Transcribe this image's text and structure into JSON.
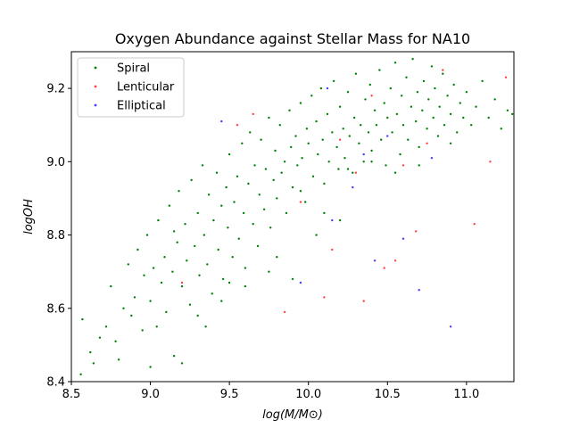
{
  "chart_data": {
    "type": "scatter",
    "title": "Oxygen Abundance against Stellar Mass for NA10",
    "xlabel": "log(M/M⊙)",
    "ylabel": "logOH",
    "xlim": [
      8.5,
      11.3
    ],
    "ylim": [
      8.4,
      9.3
    ],
    "x_ticks": [
      "8.5",
      "9.0",
      "9.5",
      "10.0",
      "10.5",
      "11.0"
    ],
    "x_tick_values": [
      8.5,
      9.0,
      9.5,
      10.0,
      10.5,
      11.0
    ],
    "y_ticks": [
      "8.4",
      "8.6",
      "8.8",
      "9.0",
      "9.2"
    ],
    "y_tick_values": [
      8.4,
      8.6,
      8.8,
      9.0,
      9.2
    ],
    "grid": false,
    "legend_position": "top-left",
    "series": [
      {
        "name": "Spiral",
        "color": "#008000",
        "points": [
          [
            8.56,
            8.42
          ],
          [
            8.57,
            8.57
          ],
          [
            8.62,
            8.48
          ],
          [
            8.64,
            8.45
          ],
          [
            8.68,
            8.52
          ],
          [
            8.72,
            8.55
          ],
          [
            8.75,
            8.66
          ],
          [
            8.78,
            8.51
          ],
          [
            8.8,
            8.46
          ],
          [
            8.83,
            8.6
          ],
          [
            8.86,
            8.72
          ],
          [
            8.88,
            8.58
          ],
          [
            8.9,
            8.63
          ],
          [
            8.92,
            8.76
          ],
          [
            8.95,
            8.54
          ],
          [
            8.96,
            8.69
          ],
          [
            8.98,
            8.8
          ],
          [
            9.0,
            8.62
          ],
          [
            9.02,
            8.71
          ],
          [
            9.04,
            8.55
          ],
          [
            9.05,
            8.84
          ],
          [
            9.07,
            8.67
          ],
          [
            9.09,
            8.74
          ],
          [
            9.1,
            8.59
          ],
          [
            9.12,
            8.88
          ],
          [
            9.14,
            8.7
          ],
          [
            9.15,
            8.47
          ],
          [
            9.17,
            8.78
          ],
          [
            9.18,
            8.92
          ],
          [
            9.2,
            8.66
          ],
          [
            9.22,
            8.83
          ],
          [
            9.23,
            8.73
          ],
          [
            9.25,
            8.61
          ],
          [
            9.26,
            8.95
          ],
          [
            9.28,
            8.77
          ],
          [
            9.3,
            8.86
          ],
          [
            9.31,
            8.69
          ],
          [
            9.33,
            8.99
          ],
          [
            9.34,
            8.8
          ],
          [
            9.36,
            8.72
          ],
          [
            9.37,
            8.91
          ],
          [
            9.39,
            8.64
          ],
          [
            9.4,
            8.84
          ],
          [
            9.42,
            8.97
          ],
          [
            9.43,
            8.76
          ],
          [
            9.45,
            8.88
          ],
          [
            9.46,
            8.68
          ],
          [
            9.48,
            8.93
          ],
          [
            9.49,
            8.82
          ],
          [
            9.5,
            9.02
          ],
          [
            9.52,
            8.74
          ],
          [
            9.53,
            8.89
          ],
          [
            9.55,
            8.96
          ],
          [
            9.56,
            8.79
          ],
          [
            9.58,
            9.05
          ],
          [
            9.59,
            8.86
          ],
          [
            9.6,
            8.71
          ],
          [
            9.62,
            8.94
          ],
          [
            9.63,
            9.08
          ],
          [
            9.65,
            8.83
          ],
          [
            9.66,
            8.99
          ],
          [
            9.68,
            8.77
          ],
          [
            9.69,
            8.91
          ],
          [
            9.7,
            9.06
          ],
          [
            9.72,
            8.87
          ],
          [
            9.73,
            8.98
          ],
          [
            9.75,
            9.12
          ],
          [
            9.76,
            8.82
          ],
          [
            9.78,
            8.95
          ],
          [
            9.79,
            9.03
          ],
          [
            9.8,
            8.9
          ],
          [
            9.82,
            9.1
          ],
          [
            9.83,
            8.97
          ],
          [
            9.85,
            9.0
          ],
          [
            9.86,
            8.86
          ],
          [
            9.88,
            9.14
          ],
          [
            9.89,
            9.04
          ],
          [
            9.9,
            8.93
          ],
          [
            9.92,
            9.07
          ],
          [
            9.93,
            8.99
          ],
          [
            9.95,
            9.16
          ],
          [
            9.96,
            9.01
          ],
          [
            9.98,
            8.89
          ],
          [
            9.99,
            9.09
          ],
          [
            10.0,
            9.05
          ],
          [
            10.02,
            9.18
          ],
          [
            10.03,
            8.96
          ],
          [
            10.05,
            9.11
          ],
          [
            10.06,
            9.02
          ],
          [
            10.08,
            9.2
          ],
          [
            10.09,
            9.06
          ],
          [
            10.1,
            8.94
          ],
          [
            10.12,
            9.13
          ],
          [
            10.13,
            9.0
          ],
          [
            10.15,
            9.08
          ],
          [
            10.16,
            9.22
          ],
          [
            10.18,
            9.04
          ],
          [
            10.19,
            8.98
          ],
          [
            10.2,
            9.15
          ],
          [
            10.22,
            9.09
          ],
          [
            10.23,
            9.01
          ],
          [
            10.25,
            9.19
          ],
          [
            10.26,
            9.07
          ],
          [
            10.28,
            8.97
          ],
          [
            10.29,
            9.12
          ],
          [
            10.3,
            9.24
          ],
          [
            10.32,
            9.05
          ],
          [
            10.33,
            9.1
          ],
          [
            10.35,
            9.0
          ],
          [
            10.36,
            9.17
          ],
          [
            10.38,
            9.08
          ],
          [
            10.39,
            9.21
          ],
          [
            10.4,
            9.03
          ],
          [
            10.42,
            9.14
          ],
          [
            10.43,
            9.1
          ],
          [
            10.45,
            9.25
          ],
          [
            10.46,
            9.06
          ],
          [
            10.48,
            9.16
          ],
          [
            10.49,
            8.99
          ],
          [
            10.5,
            9.12
          ],
          [
            10.52,
            9.2
          ],
          [
            10.53,
            9.08
          ],
          [
            10.55,
            9.27
          ],
          [
            10.56,
            9.13
          ],
          [
            10.58,
            9.02
          ],
          [
            10.59,
            9.18
          ],
          [
            10.6,
            9.1
          ],
          [
            10.62,
            9.23
          ],
          [
            10.63,
            9.06
          ],
          [
            10.65,
            9.15
          ],
          [
            10.66,
            9.28
          ],
          [
            10.68,
            9.11
          ],
          [
            10.69,
            9.19
          ],
          [
            10.7,
            9.04
          ],
          [
            10.72,
            9.14
          ],
          [
            10.73,
            9.22
          ],
          [
            10.75,
            9.09
          ],
          [
            10.76,
            9.17
          ],
          [
            10.78,
            9.26
          ],
          [
            10.79,
            9.12
          ],
          [
            10.8,
            9.2
          ],
          [
            10.82,
            9.07
          ],
          [
            10.83,
            9.15
          ],
          [
            10.85,
            9.24
          ],
          [
            10.86,
            9.1
          ],
          [
            10.88,
            9.18
          ],
          [
            10.9,
            9.13
          ],
          [
            10.92,
            9.21
          ],
          [
            10.94,
            9.08
          ],
          [
            10.96,
            9.16
          ],
          [
            10.98,
            9.12
          ],
          [
            11.0,
            9.19
          ],
          [
            11.03,
            9.1
          ],
          [
            11.06,
            9.15
          ],
          [
            11.1,
            9.22
          ],
          [
            11.14,
            9.12
          ],
          [
            11.18,
            9.17
          ],
          [
            11.22,
            9.09
          ],
          [
            11.26,
            9.14
          ],
          [
            11.29,
            9.13
          ],
          [
            9.0,
            8.44
          ],
          [
            9.2,
            8.45
          ],
          [
            9.8,
            8.74
          ],
          [
            9.95,
            8.92
          ],
          [
            10.1,
            8.86
          ],
          [
            10.25,
            8.98
          ],
          [
            10.4,
            9.0
          ],
          [
            10.55,
            8.97
          ],
          [
            10.7,
            8.99
          ],
          [
            10.9,
            9.05
          ],
          [
            9.3,
            8.58
          ],
          [
            9.45,
            8.62
          ],
          [
            9.6,
            8.66
          ],
          [
            9.75,
            8.7
          ],
          [
            9.9,
            8.68
          ],
          [
            10.05,
            8.8
          ],
          [
            10.2,
            8.84
          ],
          [
            9.15,
            8.81
          ],
          [
            9.35,
            8.55
          ],
          [
            9.5,
            8.67
          ]
        ]
      },
      {
        "name": "Lenticular",
        "color": "#ff4040",
        "points": [
          [
            9.2,
            8.67
          ],
          [
            9.55,
            9.1
          ],
          [
            9.65,
            9.13
          ],
          [
            9.85,
            8.59
          ],
          [
            9.95,
            8.89
          ],
          [
            10.1,
            8.63
          ],
          [
            10.15,
            8.76
          ],
          [
            10.3,
            8.97
          ],
          [
            10.35,
            8.62
          ],
          [
            10.4,
            9.18
          ],
          [
            10.48,
            8.71
          ],
          [
            10.55,
            8.73
          ],
          [
            10.6,
            8.99
          ],
          [
            10.68,
            8.81
          ],
          [
            10.75,
            9.05
          ],
          [
            10.85,
            9.25
          ],
          [
            11.05,
            8.83
          ],
          [
            11.15,
            9.0
          ],
          [
            11.25,
            9.23
          ],
          [
            10.2,
            9.06
          ]
        ]
      },
      {
        "name": "Elliptical",
        "color": "#4040ff",
        "points": [
          [
            9.45,
            9.11
          ],
          [
            9.95,
            8.67
          ],
          [
            10.12,
            9.2
          ],
          [
            10.15,
            8.84
          ],
          [
            10.28,
            8.93
          ],
          [
            10.42,
            8.73
          ],
          [
            10.6,
            8.79
          ],
          [
            10.7,
            8.65
          ],
          [
            10.78,
            9.01
          ],
          [
            10.9,
            8.55
          ],
          [
            10.5,
            9.07
          ],
          [
            10.35,
            9.02
          ]
        ]
      }
    ]
  }
}
